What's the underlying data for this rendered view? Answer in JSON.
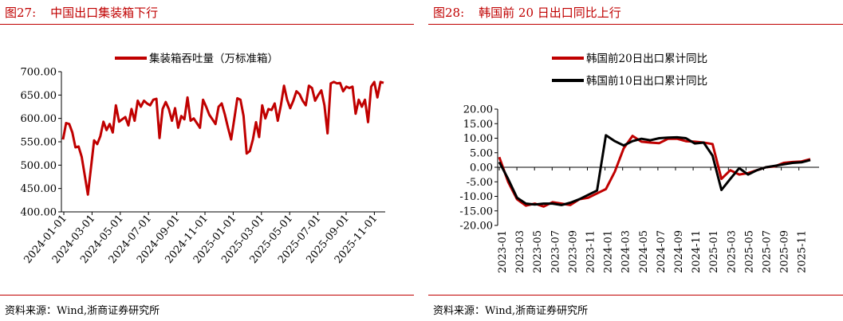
{
  "left": {
    "figure_label": "图27:",
    "figure_title": "中国出口集装箱下行",
    "source": "资料来源：Wind,浙商证券研究所"
  },
  "right": {
    "figure_label": "图28:",
    "figure_title": "韩国前 20 日出口同比上行",
    "source": "资料来源：Wind,浙商证券研究所"
  },
  "chart_data": [
    {
      "type": "line",
      "title": "",
      "xlabel": "",
      "ylabel": "",
      "ylim": [
        400,
        700
      ],
      "yticks": [
        "400.00",
        "450.00",
        "500.00",
        "550.00",
        "600.00",
        "650.00",
        "700.00"
      ],
      "xticks": [
        "2024-01-01",
        "2024-03-01",
        "2024-05-01",
        "2024-07-01",
        "2024-09-01",
        "2024-11-01",
        "2025-01-01",
        "2025-03-01",
        "2025-05-01",
        "2025-07-01",
        "2025-09-01",
        "2025-11-01"
      ],
      "grid": false,
      "legend_position": "top-center",
      "series": [
        {
          "name": "集装箱吞吐量（万标准箱）",
          "color": "#c00000",
          "values": [
            555,
            590,
            588,
            570,
            538,
            540,
            518,
            478,
            437,
            495,
            553,
            545,
            562,
            593,
            575,
            588,
            570,
            628,
            593,
            598,
            603,
            585,
            620,
            595,
            638,
            625,
            638,
            632,
            628,
            640,
            642,
            558,
            620,
            635,
            620,
            595,
            622,
            580,
            605,
            598,
            645,
            595,
            600,
            590,
            580,
            640,
            625,
            608,
            598,
            588,
            625,
            632,
            608,
            580,
            555,
            598,
            643,
            640,
            605,
            525,
            530,
            555,
            592,
            560,
            628,
            600,
            620,
            618,
            632,
            595,
            628,
            670,
            640,
            622,
            638,
            658,
            652,
            638,
            628,
            670,
            665,
            638,
            650,
            660,
            628,
            568,
            675,
            678,
            675,
            676,
            658,
            668,
            665,
            668,
            610,
            640,
            625,
            640,
            592,
            668,
            678,
            645,
            678,
            676
          ]
        }
      ]
    },
    {
      "type": "line",
      "title": "",
      "xlabel": "",
      "ylabel": "",
      "ylim": [
        -20,
        20
      ],
      "yticks": [
        "-20.00",
        "-15.00",
        "-10.00",
        "-5.00",
        "0.00",
        "5.00",
        "10.00",
        "15.00",
        "20.00"
      ],
      "xticks": [
        "2023-01",
        "2023-03",
        "2023-05",
        "2023-07",
        "2023-09",
        "2023-11",
        "2024-01",
        "2024-03",
        "2024-05",
        "2024-07",
        "2024-09",
        "2024-11",
        "2025-01",
        "2025-03",
        "2025-05",
        "2025-07",
        "2025-09",
        "2025-11"
      ],
      "grid": false,
      "legend_position": "top-left",
      "series": [
        {
          "name": "韩国前20日出口累计同比",
          "color": "#c00000",
          "values": [
            3.5,
            -5.0,
            -11.0,
            -13.2,
            -12.5,
            -13.5,
            -12.0,
            -12.5,
            -13.0,
            -11.0,
            -10.5,
            -9.0,
            -7.5,
            -1.5,
            6.5,
            10.8,
            8.8,
            8.5,
            8.3,
            9.8,
            9.8,
            9.0,
            8.8,
            8.5,
            8.0,
            -4.0,
            -1.0,
            -2.5,
            -2.0,
            -1.0,
            0.0,
            0.3,
            1.5,
            1.8,
            2.0,
            2.8
          ]
        },
        {
          "name": "韩国前10日出口累计同比",
          "color": "#000000",
          "values": [
            1.8,
            -4.0,
            -10.5,
            -12.5,
            -12.8,
            -12.5,
            -12.5,
            -13.0,
            -12.2,
            -11.0,
            -9.5,
            -8.0,
            11.0,
            9.0,
            7.5,
            9.0,
            9.8,
            9.3,
            10.0,
            10.2,
            10.3,
            10.0,
            8.2,
            8.5,
            4.0,
            -7.8,
            -4.0,
            -0.3,
            -2.5,
            -1.0,
            0.0,
            0.5,
            1.0,
            1.5,
            1.7,
            2.5
          ]
        }
      ]
    }
  ]
}
